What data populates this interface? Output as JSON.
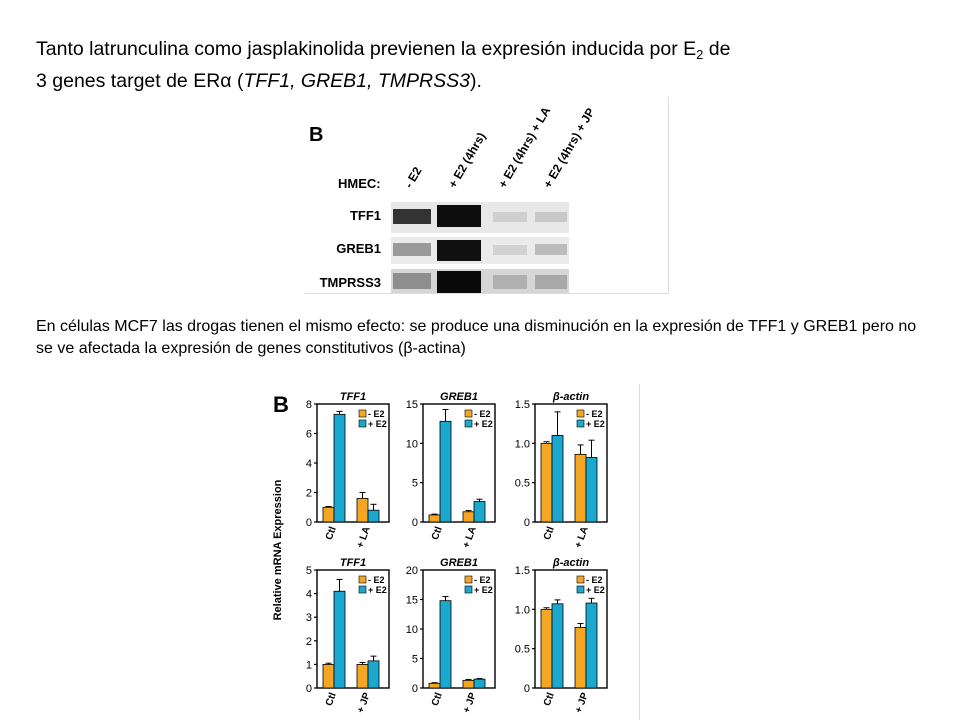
{
  "title": {
    "line1_pre": "Tanto latrunculina como jasplakinolida previenen la expresión inducida por E",
    "line1_sub": "2",
    "line1_post": " de",
    "line2_pre": "3 genes target de ER",
    "line2_symbol": "α",
    "line2_post": " (",
    "line2_genes": "TFF1, GREB1, TMPRSS3",
    "line2_end": ")."
  },
  "caption": {
    "text": "En células MCF7 las drogas tienen el mismo efecto: se produce una disminución en la expresión de TFF1 y GREB1 pero no se ve afectada la expresión de genes constitutivos (",
    "symbol": "β",
    "end": "-actina)"
  },
  "gel": {
    "panel_label": "B",
    "row_header": "HMEC:",
    "lanes": [
      "- E2",
      "+ E2 (4hrs)",
      "+ E2 (4hrs) + LA",
      "+ E2 (4hrs) + JP"
    ],
    "genes": [
      "TFF1",
      "GREB1",
      "TMPRSS3"
    ]
  },
  "colors": {
    "minus_e2": "#F5A623",
    "plus_e2": "#1BA8CF"
  },
  "bar_panel_label": "B",
  "ylabel": "Relative mRNA Expression",
  "legend": [
    "- E2",
    "+ E2"
  ],
  "chart_data": [
    {
      "type": "bar",
      "title": "TFF1",
      "categories": [
        "Ctl",
        "+ LA"
      ],
      "ylim": [
        0,
        8
      ],
      "yticks": [
        0,
        2,
        4,
        6,
        8
      ],
      "series": [
        {
          "name": "- E2",
          "values": [
            1.0,
            1.6
          ],
          "errors": [
            0.05,
            0.4
          ]
        },
        {
          "name": "+ E2",
          "values": [
            7.3,
            0.8
          ],
          "errors": [
            0.2,
            0.4
          ]
        }
      ]
    },
    {
      "type": "bar",
      "title": "GREB1",
      "categories": [
        "Ctl",
        "+ LA"
      ],
      "ylim": [
        0,
        15
      ],
      "yticks": [
        0,
        5,
        10,
        15
      ],
      "series": [
        {
          "name": "- E2",
          "values": [
            0.9,
            1.3
          ],
          "errors": [
            0.1,
            0.15
          ]
        },
        {
          "name": "+ E2",
          "values": [
            12.8,
            2.6
          ],
          "errors": [
            1.5,
            0.3
          ]
        }
      ]
    },
    {
      "type": "bar",
      "title": "β-actin",
      "categories": [
        "Ctl",
        "+ LA"
      ],
      "ylim": [
        0,
        1.5
      ],
      "yticks": [
        "0",
        "0.5",
        "1.0",
        "1.5"
      ],
      "series": [
        {
          "name": "- E2",
          "values": [
            1.0,
            0.86
          ],
          "errors": [
            0.02,
            0.12
          ]
        },
        {
          "name": "+ E2",
          "values": [
            1.1,
            0.82
          ],
          "errors": [
            0.3,
            0.22
          ]
        }
      ]
    },
    {
      "type": "bar",
      "title": "TFF1",
      "categories": [
        "Ctl",
        "+ JP"
      ],
      "ylim": [
        0,
        5
      ],
      "yticks": [
        0,
        1,
        2,
        3,
        4,
        5
      ],
      "series": [
        {
          "name": "- E2",
          "values": [
            1.0,
            1.0
          ],
          "errors": [
            0.05,
            0.08
          ]
        },
        {
          "name": "+ E2",
          "values": [
            4.1,
            1.15
          ],
          "errors": [
            0.5,
            0.2
          ]
        }
      ]
    },
    {
      "type": "bar",
      "title": "GREB1",
      "categories": [
        "Ctl",
        "+ JP"
      ],
      "ylim": [
        0,
        20
      ],
      "yticks": [
        0,
        5,
        10,
        15,
        20
      ],
      "series": [
        {
          "name": "- E2",
          "values": [
            0.8,
            1.3
          ],
          "errors": [
            0.1,
            0.15
          ]
        },
        {
          "name": "+ E2",
          "values": [
            14.8,
            1.5
          ],
          "errors": [
            0.7,
            0.1
          ]
        }
      ]
    },
    {
      "type": "bar",
      "title": "β-actin",
      "categories": [
        "Ctl",
        "+ JP"
      ],
      "ylim": [
        0,
        1.5
      ],
      "yticks": [
        "0",
        "0.5",
        "1.0",
        "1.5"
      ],
      "series": [
        {
          "name": "- E2",
          "values": [
            1.0,
            0.77
          ],
          "errors": [
            0.02,
            0.05
          ]
        },
        {
          "name": "+ E2",
          "values": [
            1.07,
            1.08
          ],
          "errors": [
            0.05,
            0.06
          ]
        }
      ]
    }
  ]
}
